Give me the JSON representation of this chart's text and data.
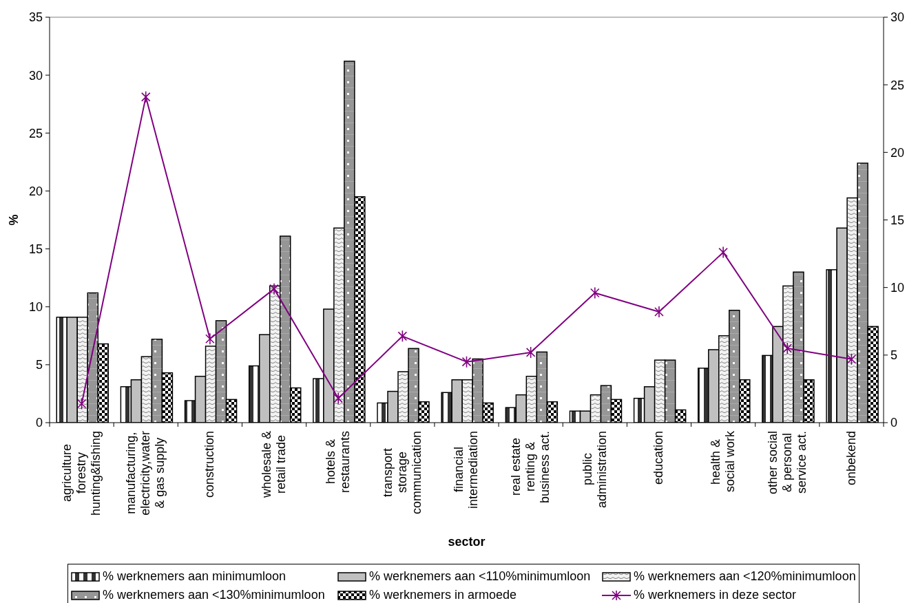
{
  "chart_data": {
    "type": "bar",
    "xlabel": "sector",
    "ylabel": "%",
    "categories": [
      "agriculture\nforestry\nhunting&fishing",
      "manufacturing,\nelectricity,water\n& gas supply",
      "construction",
      "wholesale &\nretail trade",
      "hotels &\nrestaurants",
      "transport\nstorage\ncommunication",
      "financial\nintermediation",
      "real estate\nrenting &\nbusiness act.",
      "public\nadministration",
      "education",
      "health &\nsocial work",
      "other social\n& personal\nservice act.",
      "onbekend"
    ],
    "series": [
      {
        "name": "% werknemers aan minimumloon",
        "color": "#333333",
        "values": [
          9.1,
          3.1,
          1.9,
          4.9,
          3.8,
          1.7,
          2.6,
          1.3,
          1.0,
          2.1,
          4.7,
          5.8,
          13.2
        ]
      },
      {
        "name": "% werknemers aan <110%minimumloon",
        "color": "#c0c0c0",
        "values": [
          9.1,
          3.7,
          4.0,
          7.6,
          9.8,
          2.7,
          3.7,
          2.4,
          1.0,
          3.1,
          6.3,
          8.3,
          16.8
        ]
      },
      {
        "name": "% werknemers aan <120%minimumloon",
        "color": "#f2f2f2",
        "values": [
          9.1,
          5.7,
          6.6,
          11.8,
          16.8,
          4.4,
          3.7,
          4.0,
          2.4,
          5.4,
          7.5,
          11.8,
          19.4
        ]
      },
      {
        "name": "% werknemers aan <130%minimumloon",
        "color": "#969696",
        "values": [
          11.2,
          7.2,
          8.8,
          16.1,
          31.2,
          6.4,
          5.5,
          6.1,
          3.2,
          5.4,
          9.7,
          13.0,
          22.4
        ]
      },
      {
        "name": "% werknemers in armoede",
        "color": "#000000",
        "values": [
          6.8,
          4.3,
          2.0,
          3.0,
          19.5,
          1.8,
          1.7,
          1.8,
          2.0,
          1.1,
          3.7,
          3.7,
          8.3
        ]
      },
      {
        "name": "% werknemers in deze sector",
        "color": "#800080",
        "type": "line",
        "axis": "y2",
        "values": [
          1.4,
          24.1,
          6.2,
          9.9,
          1.8,
          6.4,
          4.5,
          5.2,
          9.6,
          8.2,
          12.6,
          5.5,
          4.7
        ]
      }
    ],
    "ylim": [
      0,
      35
    ],
    "yticks": [
      0,
      5,
      10,
      15,
      20,
      25,
      30,
      35
    ],
    "y2lim": [
      0,
      30
    ],
    "y2ticks": [
      0,
      5,
      10,
      15,
      20,
      25,
      30
    ],
    "legend": "bottom",
    "marker": "cross"
  }
}
